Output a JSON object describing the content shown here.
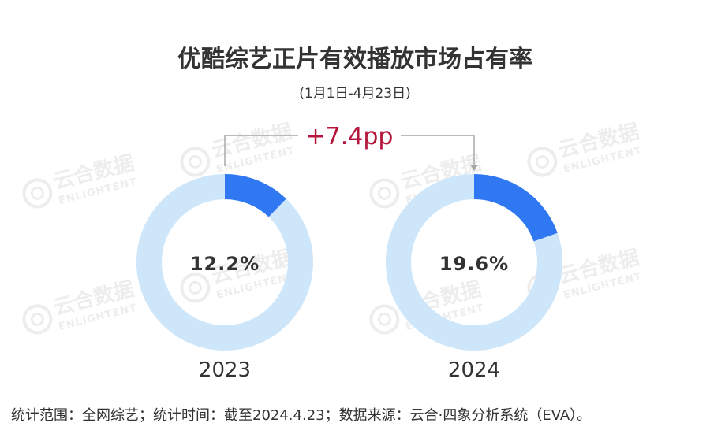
{
  "title": "优酷综艺正片有效播放市场占有率",
  "subtitle": "(1月1日-4月23日)",
  "colors": {
    "share": "#2f78f2",
    "ring": "#cde6fa",
    "delta": "#b5163c",
    "text": "#333333",
    "connector": "#a6a6a6"
  },
  "chart_data": {
    "type": "pie",
    "style": "donut",
    "title": "优酷综艺正片有效播放市场占有率",
    "unit": "%",
    "charts": [
      {
        "category": "2023",
        "value": 12.2,
        "label": "12.2%"
      },
      {
        "category": "2024",
        "value": 19.6,
        "label": "19.6%"
      }
    ],
    "annotations": [
      {
        "text": "+7.4pp",
        "from": "2023",
        "to": "2024"
      }
    ]
  },
  "watermark": {
    "brand_cn": "云合数据",
    "brand_en": "ENLIGHTENT"
  },
  "footnote": "统计范围：全网综艺；统计时间：截至2024.4.23；数据来源：云合·四象分析系统（EVA）。"
}
